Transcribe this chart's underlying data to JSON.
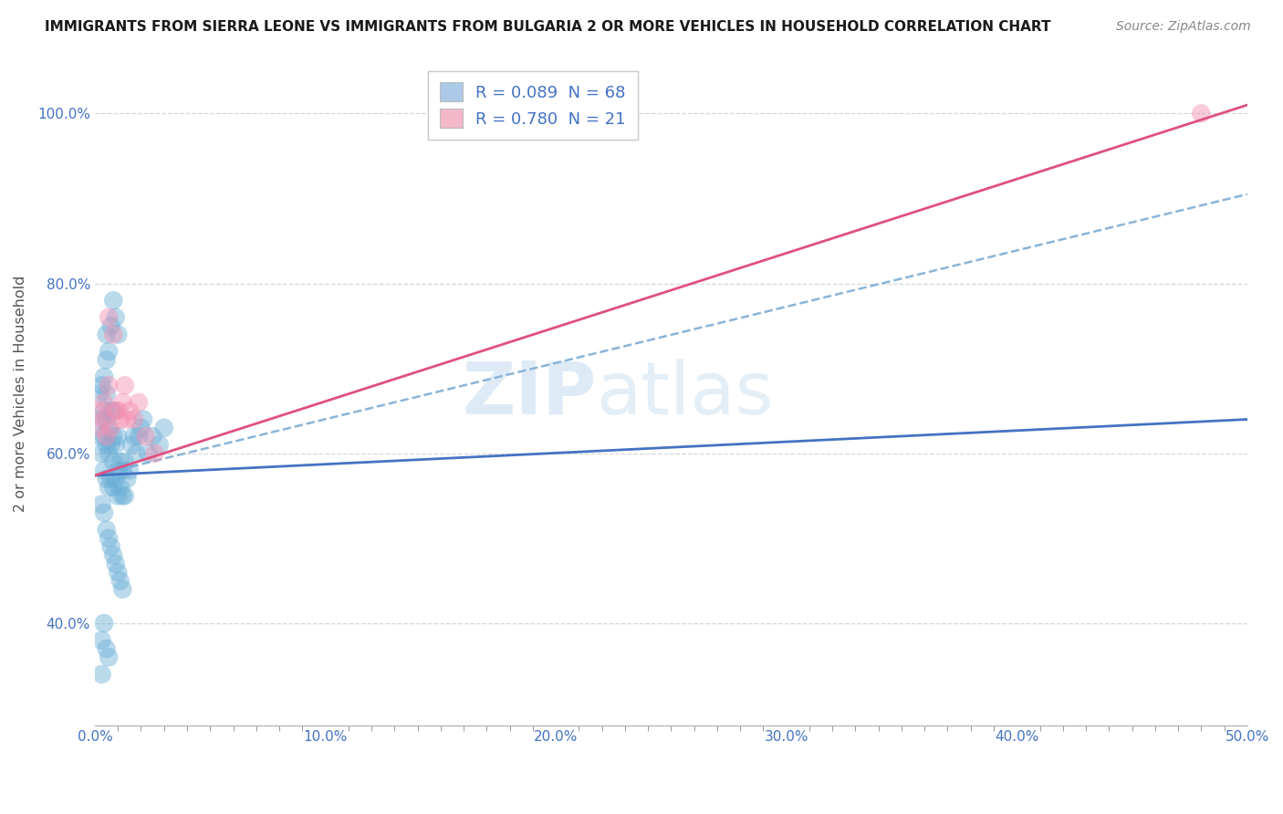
{
  "title": "IMMIGRANTS FROM SIERRA LEONE VS IMMIGRANTS FROM BULGARIA 2 OR MORE VEHICLES IN HOUSEHOLD CORRELATION CHART",
  "source": "Source: ZipAtlas.com",
  "ylabel": "2 or more Vehicles in Household",
  "xlim": [
    0.0,
    0.5
  ],
  "ylim": [
    0.28,
    1.06
  ],
  "xtick_labels": [
    "0.0%",
    "",
    "",
    "",
    "",
    "",
    "",
    "",
    "",
    "",
    "10.0%",
    "",
    "",
    "",
    "",
    "",
    "",
    "",
    "",
    "",
    "20.0%",
    "",
    "",
    "",
    "",
    "",
    "",
    "",
    "",
    "",
    "30.0%",
    "",
    "",
    "",
    "",
    "",
    "",
    "",
    "",
    "",
    "40.0%",
    "",
    "",
    "",
    "",
    "",
    "",
    "",
    "",
    "",
    "50.0%"
  ],
  "xtick_values": [
    0.0,
    0.01,
    0.02,
    0.03,
    0.04,
    0.05,
    0.06,
    0.07,
    0.08,
    0.09,
    0.1,
    0.11,
    0.12,
    0.13,
    0.14,
    0.15,
    0.16,
    0.17,
    0.18,
    0.19,
    0.2,
    0.21,
    0.22,
    0.23,
    0.24,
    0.25,
    0.26,
    0.27,
    0.28,
    0.29,
    0.3,
    0.31,
    0.32,
    0.33,
    0.34,
    0.35,
    0.36,
    0.37,
    0.38,
    0.39,
    0.4,
    0.41,
    0.42,
    0.43,
    0.44,
    0.45,
    0.46,
    0.47,
    0.48,
    0.49,
    0.5
  ],
  "xtick_major_labels": [
    "0.0%",
    "10.0%",
    "20.0%",
    "30.0%",
    "40.0%",
    "50.0%"
  ],
  "xtick_major_values": [
    0.0,
    0.1,
    0.2,
    0.3,
    0.4,
    0.5
  ],
  "ytick_labels": [
    "40.0%",
    "60.0%",
    "80.0%",
    "100.0%"
  ],
  "ytick_values": [
    0.4,
    0.6,
    0.8,
    1.0
  ],
  "legend1_label": "R = 0.089  N = 68",
  "legend2_label": "R = 0.780  N = 21",
  "legend1_color": "#adc9e8",
  "legend2_color": "#f5b8cb",
  "color_sierra": "#6aaed6",
  "color_bulgaria": "#f48fb1",
  "trendline1_color": "#4472c4",
  "trendline2_color": "#e05080",
  "dashed_color": "#8ab4d8",
  "background_color": "#ffffff",
  "scatter_sierra_x": [
    0.002,
    0.002,
    0.003,
    0.003,
    0.003,
    0.004,
    0.004,
    0.004,
    0.004,
    0.005,
    0.005,
    0.005,
    0.005,
    0.005,
    0.006,
    0.006,
    0.006,
    0.007,
    0.007,
    0.007,
    0.008,
    0.008,
    0.008,
    0.008,
    0.009,
    0.009,
    0.01,
    0.01,
    0.01,
    0.011,
    0.011,
    0.012,
    0.012,
    0.013,
    0.013,
    0.014,
    0.015,
    0.016,
    0.017,
    0.018,
    0.019,
    0.02,
    0.021,
    0.023,
    0.025,
    0.028,
    0.03,
    0.003,
    0.004,
    0.005,
    0.006,
    0.007,
    0.008,
    0.009,
    0.01,
    0.011,
    0.012,
    0.005,
    0.006,
    0.007,
    0.008,
    0.009,
    0.01,
    0.003,
    0.004,
    0.005,
    0.006,
    0.003
  ],
  "scatter_sierra_y": [
    0.62,
    0.67,
    0.6,
    0.64,
    0.68,
    0.58,
    0.62,
    0.65,
    0.69,
    0.57,
    0.61,
    0.64,
    0.67,
    0.71,
    0.56,
    0.6,
    0.63,
    0.57,
    0.61,
    0.65,
    0.56,
    0.59,
    0.62,
    0.65,
    0.57,
    0.61,
    0.55,
    0.58,
    0.62,
    0.56,
    0.59,
    0.55,
    0.58,
    0.55,
    0.59,
    0.57,
    0.58,
    0.61,
    0.62,
    0.6,
    0.62,
    0.63,
    0.64,
    0.6,
    0.62,
    0.61,
    0.63,
    0.54,
    0.53,
    0.51,
    0.5,
    0.49,
    0.48,
    0.47,
    0.46,
    0.45,
    0.44,
    0.74,
    0.72,
    0.75,
    0.78,
    0.76,
    0.74,
    0.38,
    0.4,
    0.37,
    0.36,
    0.34
  ],
  "scatter_bulgaria_x": [
    0.002,
    0.003,
    0.004,
    0.004,
    0.005,
    0.006,
    0.006,
    0.007,
    0.008,
    0.009,
    0.01,
    0.011,
    0.012,
    0.013,
    0.014,
    0.015,
    0.017,
    0.019,
    0.022,
    0.026,
    0.48
  ],
  "scatter_bulgaria_y": [
    0.63,
    0.65,
    0.64,
    0.66,
    0.62,
    0.76,
    0.68,
    0.63,
    0.74,
    0.65,
    0.65,
    0.64,
    0.66,
    0.68,
    0.64,
    0.65,
    0.64,
    0.66,
    0.62,
    0.6,
    1.0
  ],
  "trendline1_x": [
    0.0,
    0.5
  ],
  "trendline1_y": [
    0.574,
    0.64
  ],
  "trendline2_x": [
    0.0,
    0.5
  ],
  "trendline2_y": [
    0.574,
    1.01
  ],
  "dashed_line_x": [
    0.0,
    0.5
  ],
  "dashed_line_y": [
    0.574,
    0.905
  ],
  "watermark_zip": "ZIP",
  "watermark_atlas": "atlas"
}
